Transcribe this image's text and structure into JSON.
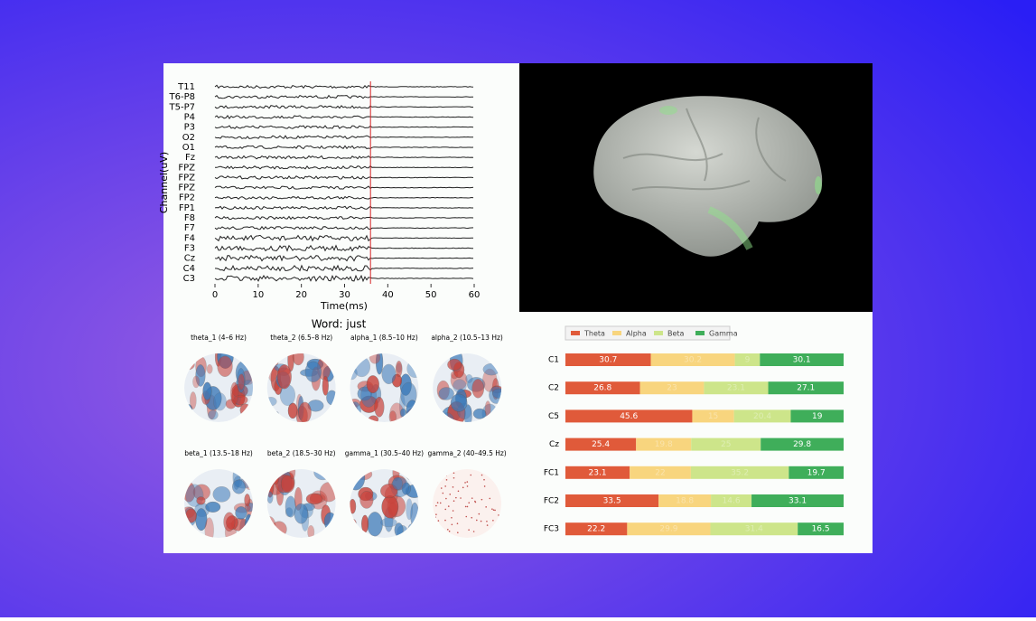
{
  "chart_data": [
    {
      "type": "eeg",
      "ylabel": "Channel(uV)",
      "xlabel": "Time(ms)",
      "channels": [
        "T11",
        "T6-P8",
        "T5-P7",
        "P4",
        "P3",
        "O2",
        "O1",
        "Fz",
        "FPZ",
        "FPZ",
        "FPZ",
        "FP2",
        "FP1",
        "F8",
        "F7",
        "F4",
        "F3",
        "Cz",
        "C4",
        "C3"
      ],
      "xlim": [
        0,
        60
      ],
      "xticks": [
        0,
        10,
        20,
        30,
        40,
        50,
        60
      ],
      "marker": 36,
      "marker_color": "#d62728"
    },
    {
      "type": "stacked_barh",
      "categories": [
        "C1",
        "C2",
        "C5",
        "Cz",
        "FC1",
        "FC2",
        "FC3"
      ],
      "xlim": [
        0,
        100
      ],
      "series": [
        {
          "name": "Theta",
          "color": "#e05a3a",
          "values": [
            30.7,
            26.8,
            45.6,
            25.4,
            23.1,
            33.5,
            22.2
          ]
        },
        {
          "name": "Alpha",
          "color": "#f8d57e",
          "values": [
            30.2,
            23.0,
            15.0,
            19.8,
            22.0,
            18.8,
            29.9
          ]
        },
        {
          "name": "Beta",
          "color": "#cde58a",
          "values": [
            9.0,
            23.1,
            20.4,
            25.0,
            35.2,
            14.6,
            31.4
          ]
        },
        {
          "name": "Gamma",
          "color": "#3fae5a",
          "values": [
            30.1,
            27.1,
            19,
            29.8,
            19.7,
            33.1,
            16.5
          ]
        }
      ]
    }
  ],
  "topomaps": {
    "title": "Word: just",
    "maps": [
      "theta_1 (4–6 Hz)",
      "theta_2 (6.5–8 Hz)",
      "alpha_1 (8.5–10 Hz)",
      "alpha_2 (10.5–13 Hz)",
      "beta_1 (13.5–18 Hz)",
      "beta_2 (18.5–30 Hz)",
      "gamma_1 (30.5–40 Hz)",
      "gamma_2 (40–49.5 Hz)"
    ]
  }
}
